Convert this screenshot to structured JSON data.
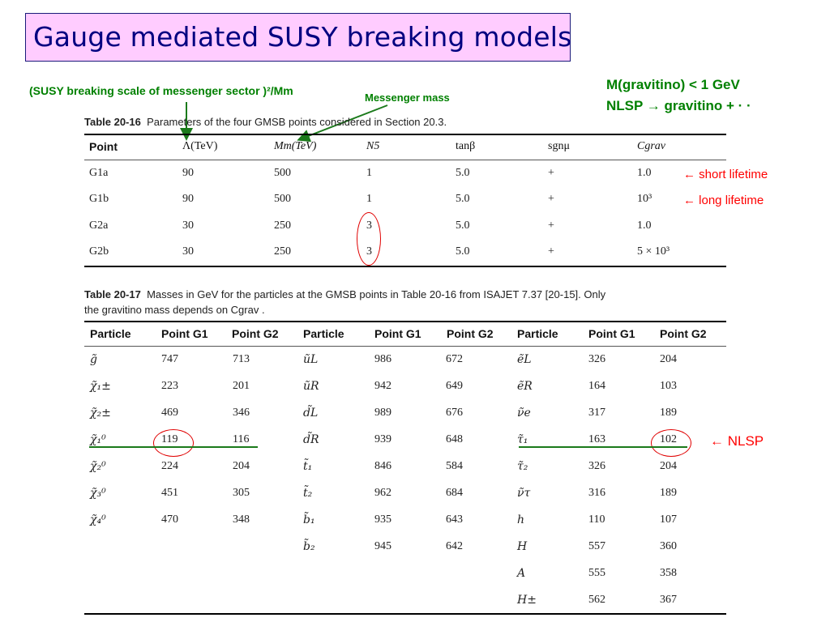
{
  "title": "Gauge mediated SUSY breaking models",
  "annotations": {
    "scale_label": "(SUSY breaking scale of messenger sector )²/Mm",
    "messenger_mass": "Messenger mass",
    "gravitino_mass": "M(gravitino) < 1 GeV",
    "nlsp_decay": "NLSP → gravitino + · ·",
    "short_lifetime": "← short lifetime",
    "long_lifetime": "← long lifetime",
    "nlsp": "← NLSP"
  },
  "table1": {
    "caption_num": "Table 20-16",
    "caption_text": "Parameters of the four GMSB points considered in Section 20.3.",
    "headers": [
      "Point",
      "Λ(TeV)",
      "Mm(TeV)",
      "N5",
      "tanβ",
      "sgnμ",
      "Cgrav"
    ],
    "rows": [
      [
        "G1a",
        "90",
        "500",
        "1",
        "5.0",
        "+",
        "1.0"
      ],
      [
        "G1b",
        "90",
        "500",
        "1",
        "5.0",
        "+",
        "10³"
      ],
      [
        "G2a",
        "30",
        "250",
        "3",
        "5.0",
        "+",
        "1.0"
      ],
      [
        "G2b",
        "30",
        "250",
        "3",
        "5.0",
        "+",
        "5 × 10³"
      ]
    ]
  },
  "table2": {
    "caption_num": "Table 20-17",
    "caption_text1": "Masses in GeV for the particles at the GMSB points in Table 20-16 from ISAJET 7.37 [20-15]. Only",
    "caption_text2": "the gravitino mass depends on Cgrav .",
    "headers": [
      "Particle",
      "Point G1",
      "Point G2",
      "Particle",
      "Point G1",
      "Point G2",
      "Particle",
      "Point G1",
      "Point G2"
    ],
    "col1": [
      [
        "g̃",
        "747",
        "713"
      ],
      [
        "χ̃₁±",
        "223",
        "201"
      ],
      [
        "χ̃₂±",
        "469",
        "346"
      ],
      [
        "χ̃₁⁰",
        "119",
        "116"
      ],
      [
        "χ̃₂⁰",
        "224",
        "204"
      ],
      [
        "χ̃₃⁰",
        "451",
        "305"
      ],
      [
        "χ̃₄⁰",
        "470",
        "348"
      ]
    ],
    "col2": [
      [
        "ũL",
        "986",
        "672"
      ],
      [
        "ũR",
        "942",
        "649"
      ],
      [
        "d̃L",
        "989",
        "676"
      ],
      [
        "d̃R",
        "939",
        "648"
      ],
      [
        "t̃₁",
        "846",
        "584"
      ],
      [
        "t̃₂",
        "962",
        "684"
      ],
      [
        "b̃₁",
        "935",
        "643"
      ],
      [
        "b̃₂",
        "945",
        "642"
      ]
    ],
    "col3": [
      [
        "ẽL",
        "326",
        "204"
      ],
      [
        "ẽR",
        "164",
        "103"
      ],
      [
        "ν̃e",
        "317",
        "189"
      ],
      [
        "τ̃₁",
        "163",
        "102"
      ],
      [
        "τ̃₂",
        "326",
        "204"
      ],
      [
        "ν̃τ",
        "316",
        "189"
      ],
      [
        "h",
        "110",
        "107"
      ],
      [
        "H",
        "557",
        "360"
      ],
      [
        "A",
        "555",
        "358"
      ],
      [
        "H±",
        "562",
        "367"
      ]
    ]
  },
  "colors": {
    "accent_green": "#008000",
    "accent_red": "#ff0000",
    "title_bg": "#ffccff",
    "title_text": "#000080"
  }
}
